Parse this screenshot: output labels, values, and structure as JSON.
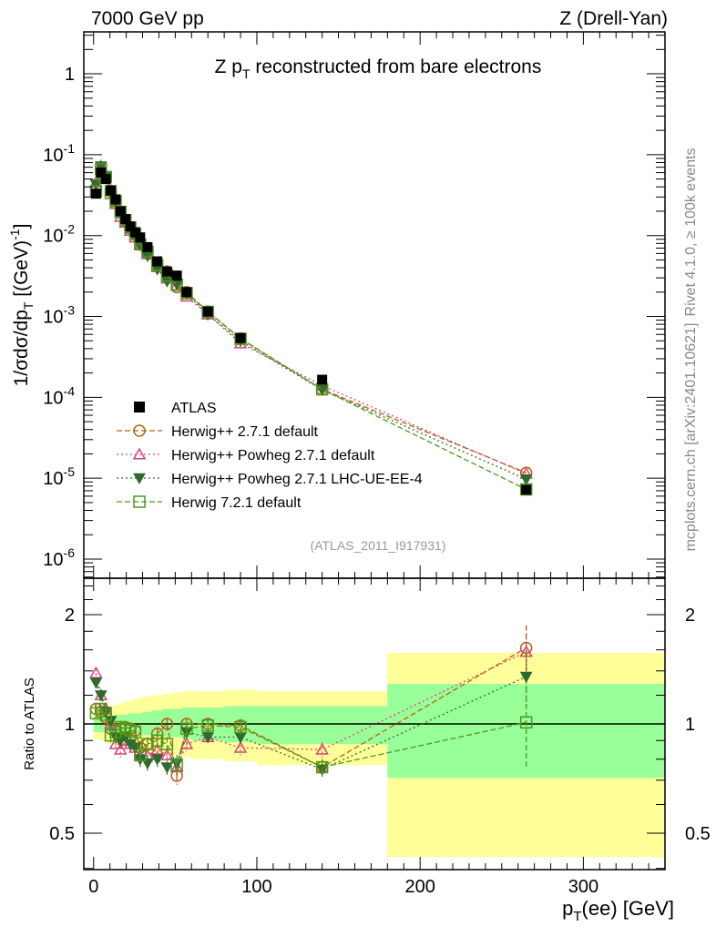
{
  "header": {
    "left": "7000 GeV pp",
    "right": "Z (Drell-Yan)"
  },
  "side": {
    "rivet": "Rivet 4.1.0, ≥ 100k events",
    "mcplots": "mcplots.cern.ch [arXiv:2401.10621]"
  },
  "chart_data": {
    "type": "line",
    "title": "Z p_T reconstructed from bare electrons",
    "analysis_tag": "(ATLAS_2011_I917931)",
    "xlabel": "p_T(ee) [GeV]",
    "ylabel": "1/σdσ/dp_T [(GeV)^-1]",
    "ratio_ylabel": "Ratio to ATLAS",
    "xlim": [
      -6,
      350
    ],
    "ylim": [
      5.8e-07,
      3.3
    ],
    "ratio_ylim": [
      0.397,
      2.52
    ],
    "x_ticks": [
      "0",
      "100",
      "200",
      "300"
    ],
    "y_ticks": [
      "1",
      "10^-1",
      "10^-2",
      "10^-3",
      "10^-4",
      "10^-5",
      "10^-6"
    ],
    "ratio_ticks": [
      "2",
      "1",
      "0.5"
    ],
    "bins": [
      [
        0,
        3
      ],
      [
        3,
        6
      ],
      [
        6,
        9
      ],
      [
        9,
        12
      ],
      [
        12,
        15
      ],
      [
        15,
        18
      ],
      [
        18,
        21
      ],
      [
        21,
        24
      ],
      [
        24,
        27
      ],
      [
        27,
        30
      ],
      [
        30,
        36
      ],
      [
        36,
        42
      ],
      [
        42,
        48
      ],
      [
        48,
        54
      ],
      [
        54,
        60
      ],
      [
        60,
        80
      ],
      [
        80,
        100
      ],
      [
        100,
        180
      ],
      [
        180,
        350
      ]
    ],
    "x": [
      1.5,
      4.5,
      7.5,
      10.5,
      13.5,
      16.5,
      19.5,
      22.5,
      25.5,
      28.5,
      33,
      39,
      45,
      51,
      57,
      70,
      90,
      140,
      265
    ],
    "data": {
      "name": "ATLAS",
      "values": [
        0.033,
        0.06,
        0.05,
        0.036,
        0.028,
        0.02,
        0.016,
        0.013,
        0.011,
        0.0095,
        0.0072,
        0.0048,
        0.0036,
        0.0032,
        0.002,
        0.00115,
        0.00054,
        0.000165,
        7.2e-06
      ]
    },
    "bands": {
      "green": [
        [
          0.95,
          1.05
        ],
        [
          0.95,
          1.05
        ],
        [
          0.95,
          1.05
        ],
        [
          0.95,
          1.05
        ],
        [
          0.95,
          1.06
        ],
        [
          0.95,
          1.06
        ],
        [
          0.94,
          1.06
        ],
        [
          0.94,
          1.07
        ],
        [
          0.94,
          1.07
        ],
        [
          0.93,
          1.07
        ],
        [
          0.93,
          1.08
        ],
        [
          0.92,
          1.09
        ],
        [
          0.92,
          1.1
        ],
        [
          0.92,
          1.1
        ],
        [
          0.91,
          1.11
        ],
        [
          0.9,
          1.11
        ],
        [
          0.89,
          1.12
        ],
        [
          0.88,
          1.12
        ],
        [
          0.71,
          1.29
        ]
      ],
      "yellow": [
        [
          0.91,
          1.09
        ],
        [
          0.9,
          1.1
        ],
        [
          0.89,
          1.11
        ],
        [
          0.88,
          1.12
        ],
        [
          0.87,
          1.13
        ],
        [
          0.87,
          1.14
        ],
        [
          0.86,
          1.15
        ],
        [
          0.86,
          1.16
        ],
        [
          0.85,
          1.17
        ],
        [
          0.85,
          1.18
        ],
        [
          0.84,
          1.19
        ],
        [
          0.83,
          1.2
        ],
        [
          0.82,
          1.21
        ],
        [
          0.82,
          1.22
        ],
        [
          0.81,
          1.23
        ],
        [
          0.8,
          1.23
        ],
        [
          0.79,
          1.24
        ],
        [
          0.77,
          1.23
        ],
        [
          0.43,
          1.57
        ]
      ]
    },
    "series": [
      {
        "name": "Herwig++ 2.7.1 default",
        "color": "#b8600f",
        "marker": "circle",
        "dash": "6,3",
        "ratio": [
          1.1,
          1.08,
          1.04,
          0.97,
          0.96,
          0.97,
          0.98,
          0.97,
          0.96,
          0.86,
          0.88,
          0.94,
          1.0,
          0.72,
          1.0,
          1.0,
          0.99,
          0.76,
          1.62
        ]
      },
      {
        "name": "Herwig++ Powheg 2.7.1 default",
        "color": "#d6447a",
        "marker": "triangle-up",
        "dash": "2,3",
        "ratio": [
          1.38,
          1.2,
          1.1,
          1.0,
          0.88,
          0.85,
          0.9,
          0.88,
          0.86,
          0.82,
          0.82,
          0.85,
          0.82,
          0.76,
          0.88,
          0.92,
          0.86,
          0.85,
          1.58
        ]
      },
      {
        "name": "Herwig++ Powheg 2.7.1 LHC-UE-EE-4",
        "color": "#2e6b2e",
        "marker": "triangle-down",
        "dash": "2,3",
        "ratio": [
          1.3,
          1.2,
          1.08,
          1.02,
          0.92,
          0.9,
          0.92,
          0.88,
          0.86,
          0.8,
          0.78,
          0.8,
          0.76,
          0.78,
          0.95,
          0.92,
          0.92,
          0.75,
          1.35
        ]
      },
      {
        "name": "Herwig 7.2.1 default",
        "color": "#4c9a1a",
        "marker": "square",
        "dash": "6,3",
        "ratio": [
          1.07,
          1.1,
          1.06,
          0.93,
          0.95,
          0.98,
          0.97,
          0.96,
          0.95,
          0.82,
          0.88,
          0.9,
          0.88,
          0.77,
          0.97,
          0.99,
          0.98,
          0.76,
          1.01
        ]
      }
    ],
    "legend_placement": "lower-left"
  }
}
